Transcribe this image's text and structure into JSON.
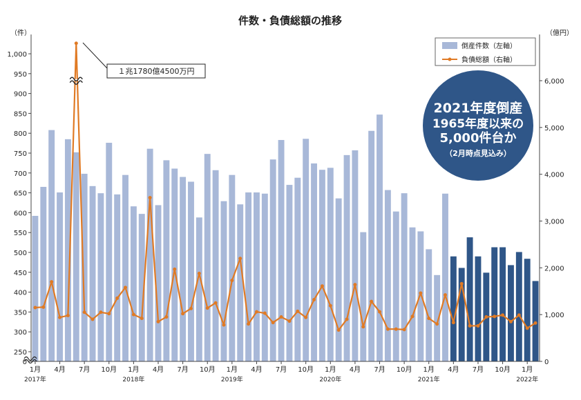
{
  "colors": {
    "bar_light": "#a8b8d8",
    "bar_dark": "#2f5688",
    "line": "#e07a24",
    "badge": "#2f5688"
  },
  "chart_data": {
    "type": "bar",
    "title": "件数・負債総額の推移",
    "y_left_unit": "（件）",
    "y_right_unit": "（億円）",
    "yleft_ticks": [
      "0",
      "250",
      "300",
      "350",
      "400",
      "450",
      "500",
      "550",
      "600",
      "650",
      "700",
      "750",
      "800",
      "850",
      "900",
      "950",
      "1,000"
    ],
    "yleft_ticks_values": [
      0,
      250,
      300,
      350,
      400,
      450,
      500,
      550,
      600,
      650,
      700,
      750,
      800,
      850,
      900,
      950,
      1000
    ],
    "yright_ticks": [
      "0",
      "1,000",
      "2,000",
      "3,000",
      "4,000",
      "5,000",
      "6,000"
    ],
    "yright_ticks_values": [
      0,
      1000,
      2000,
      3000,
      4000,
      5000,
      6000
    ],
    "x_month_labels": [
      {
        "i": 0,
        "text": "1月"
      },
      {
        "i": 3,
        "text": "4月"
      },
      {
        "i": 6,
        "text": "7月"
      },
      {
        "i": 9,
        "text": "10月"
      },
      {
        "i": 12,
        "text": "1月"
      },
      {
        "i": 15,
        "text": "4月"
      },
      {
        "i": 18,
        "text": "7月"
      },
      {
        "i": 21,
        "text": "10月"
      },
      {
        "i": 24,
        "text": "1月"
      },
      {
        "i": 27,
        "text": "4月"
      },
      {
        "i": 30,
        "text": "7月"
      },
      {
        "i": 33,
        "text": "10月"
      },
      {
        "i": 36,
        "text": "1月"
      },
      {
        "i": 39,
        "text": "4月"
      },
      {
        "i": 42,
        "text": "7月"
      },
      {
        "i": 45,
        "text": "10月"
      },
      {
        "i": 48,
        "text": "1月"
      },
      {
        "i": 51,
        "text": "4月"
      },
      {
        "i": 54,
        "text": "7月"
      },
      {
        "i": 57,
        "text": "10月"
      },
      {
        "i": 60,
        "text": "1月"
      }
    ],
    "x_year_labels": [
      {
        "i": 0,
        "text": "2017年"
      },
      {
        "i": 12,
        "text": "2018年"
      },
      {
        "i": 24,
        "text": "2019年"
      },
      {
        "i": 36,
        "text": "2020年"
      },
      {
        "i": 48,
        "text": "2021年"
      },
      {
        "i": 60,
        "text": "2022年"
      }
    ],
    "dark_from_index": 51,
    "series": [
      {
        "name": "倒産件数（左軸）",
        "axis": "left",
        "kind": "bar",
        "values": [
          592,
          665,
          808,
          651,
          785,
          752,
          698,
          667,
          649,
          776,
          646,
          695,
          616,
          597,
          761,
          619,
          732,
          711,
          690,
          678,
          588,
          748,
          707,
          629,
          695,
          621,
          651,
          651,
          648,
          734,
          783,
          670,
          688,
          786,
          724,
          708,
          713,
          636,
          745,
          757,
          551,
          806,
          847,
          657,
          603,
          649,
          563,
          553,
          508,
          443,
          648,
          490,
          461,
          538,
          490,
          449,
          513,
          513,
          468,
          501,
          484,
          428
        ]
      },
      {
        "name": "負債総額（右軸）",
        "axis": "right",
        "kind": "line",
        "values": [
          1150,
          1160,
          1700,
          940,
          980,
          6800,
          1050,
          900,
          1050,
          1020,
          1350,
          1580,
          1000,
          920,
          3500,
          850,
          950,
          1970,
          1020,
          1130,
          1880,
          1140,
          1250,
          780,
          1730,
          2200,
          800,
          1060,
          1030,
          830,
          950,
          860,
          1070,
          940,
          1320,
          1610,
          1190,
          670,
          900,
          1640,
          740,
          1280,
          1060,
          690,
          690,
          680,
          960,
          1460,
          920,
          800,
          1420,
          830,
          1660,
          760,
          760,
          950,
          960,
          990,
          850,
          990,
          710,
          820
        ]
      }
    ],
    "axis_break": {
      "left_jump_from": 0,
      "left_jump_to": 250
    },
    "peak_annotation": "１兆1780億4500万円",
    "legend_position": "top-right"
  },
  "badge": {
    "line1": "2021年度倒産",
    "line2": "1965年度以来の",
    "line3": "5,000件台か",
    "line4": "（2月時点見込み）"
  }
}
